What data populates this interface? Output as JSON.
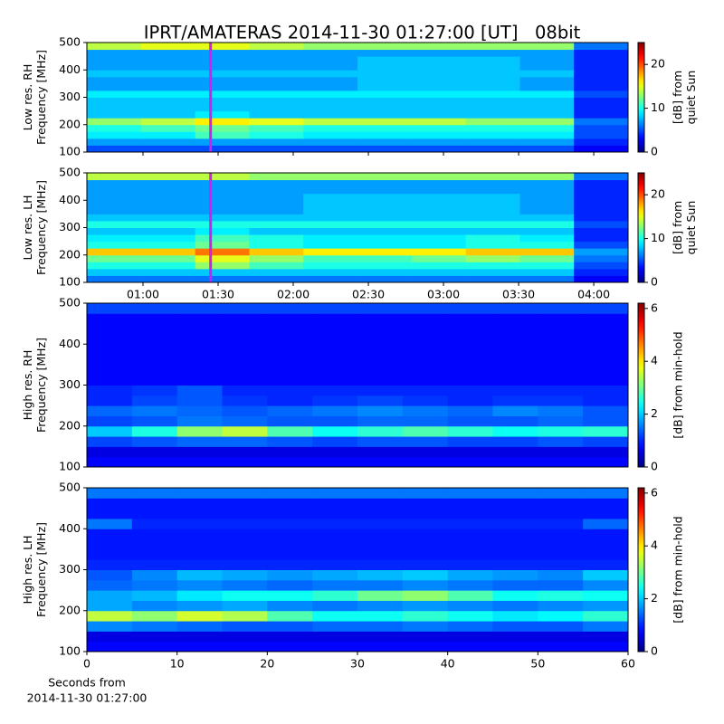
{
  "chart_data": [
    {
      "type": "heatmap",
      "title": "IPRT/AMATERAS 2014-11-30 01:27:00 [UT]   08bit",
      "ylabel": [
        "Low res. RH",
        "Frequency [MHz]"
      ],
      "xlim": [
        37.6,
        253.7
      ],
      "ylim": [
        100,
        500
      ],
      "yticks": [
        100,
        200,
        300,
        400,
        500
      ],
      "colormap": "jet",
      "markers": [
        {
          "x": 87,
          "color": "#d020f0"
        }
      ],
      "colorbar": {
        "label": [
          "[dB] from",
          "quiet Sun"
        ],
        "lim": [
          0,
          25
        ],
        "ticks": [
          0,
          10,
          20
        ]
      },
      "z": [
        [
          5,
          5,
          5,
          5,
          5,
          5,
          5,
          5,
          5,
          3
        ],
        [
          7,
          7,
          7,
          7,
          7,
          7,
          7,
          7,
          7,
          4
        ],
        [
          9,
          9,
          11,
          10,
          9,
          9,
          9,
          9,
          9,
          5
        ],
        [
          10,
          11,
          12,
          11,
          10,
          10,
          10,
          10,
          10,
          5
        ],
        [
          13,
          14,
          16,
          15,
          14,
          14,
          14,
          13,
          13,
          6
        ],
        [
          8,
          8,
          9,
          8,
          8,
          8,
          8,
          8,
          8,
          4
        ],
        [
          8,
          8,
          8,
          8,
          8,
          8,
          8,
          8,
          8,
          4
        ],
        [
          8,
          8,
          8,
          8,
          8,
          8,
          8,
          8,
          8,
          4
        ],
        [
          9,
          9,
          9,
          9,
          9,
          9,
          9,
          9,
          9,
          5
        ],
        [
          7,
          7,
          7,
          7,
          7,
          8,
          8,
          8,
          7,
          4
        ],
        [
          7,
          7,
          7,
          7,
          7,
          8,
          8,
          8,
          7,
          4
        ],
        [
          8,
          8,
          8,
          8,
          8,
          8,
          8,
          8,
          8,
          4
        ],
        [
          7,
          7,
          7,
          7,
          7,
          8,
          8,
          8,
          7,
          4
        ],
        [
          7,
          7,
          7,
          7,
          7,
          8,
          8,
          8,
          7,
          4
        ],
        [
          7,
          7,
          7,
          7,
          7,
          7,
          7,
          7,
          7,
          4
        ],
        [
          14,
          15,
          15,
          14,
          13,
          13,
          13,
          13,
          13,
          6
        ]
      ]
    },
    {
      "type": "heatmap",
      "ylabel": [
        "Low res. LH",
        "Frequency [MHz]"
      ],
      "xlim": [
        37.6,
        253.7
      ],
      "ylim": [
        100,
        500
      ],
      "yticks": [
        100,
        200,
        300,
        400,
        500
      ],
      "colormap": "jet",
      "xticks": [
        {
          "value": 60,
          "label": "01:00"
        },
        {
          "value": 90,
          "label": "01:30"
        },
        {
          "value": 120,
          "label": "02:00"
        },
        {
          "value": 150,
          "label": "02:30"
        },
        {
          "value": 180,
          "label": "03:00"
        },
        {
          "value": 210,
          "label": "03:30"
        },
        {
          "value": 240,
          "label": "04:00"
        }
      ],
      "markers": [
        {
          "x": 87,
          "color": "#d020f0"
        }
      ],
      "colorbar": {
        "label": [
          "[dB] from",
          "quiet Sun"
        ],
        "lim": [
          0,
          25
        ],
        "ticks": [
          0,
          10,
          20
        ]
      },
      "z": [
        [
          6,
          6,
          6,
          6,
          6,
          6,
          6,
          6,
          6,
          3
        ],
        [
          8,
          8,
          8,
          8,
          8,
          8,
          8,
          8,
          8,
          4
        ],
        [
          10,
          10,
          13,
          11,
          10,
          10,
          10,
          10,
          10,
          5
        ],
        [
          12,
          12,
          15,
          13,
          11,
          11,
          12,
          13,
          12,
          6
        ],
        [
          17,
          17,
          19,
          17,
          16,
          16,
          16,
          17,
          17,
          7
        ],
        [
          10,
          10,
          12,
          10,
          9,
          9,
          9,
          10,
          10,
          5
        ],
        [
          9,
          9,
          11,
          10,
          9,
          9,
          9,
          10,
          9,
          4
        ],
        [
          8,
          8,
          9,
          8,
          8,
          8,
          8,
          8,
          8,
          4
        ],
        [
          10,
          10,
          10,
          10,
          10,
          10,
          10,
          10,
          10,
          5
        ],
        [
          8,
          8,
          8,
          8,
          8,
          8,
          8,
          8,
          8,
          4
        ],
        [
          7,
          7,
          7,
          7,
          8,
          8,
          8,
          8,
          7,
          4
        ],
        [
          7,
          7,
          7,
          7,
          8,
          8,
          8,
          8,
          7,
          4
        ],
        [
          7,
          7,
          7,
          7,
          8,
          8,
          8,
          8,
          7,
          4
        ],
        [
          7,
          7,
          7,
          7,
          7,
          7,
          7,
          7,
          7,
          4
        ],
        [
          7,
          7,
          7,
          7,
          7,
          7,
          7,
          7,
          7,
          4
        ],
        [
          14,
          14,
          14,
          13,
          13,
          13,
          13,
          13,
          13,
          6
        ]
      ]
    },
    {
      "type": "heatmap",
      "ylabel": [
        "High res. RH",
        "Frequency [MHz]"
      ],
      "xlim": [
        0,
        60
      ],
      "ylim": [
        100,
        500
      ],
      "yticks": [
        100,
        200,
        300,
        400,
        500
      ],
      "colormap": "jet",
      "colorbar": {
        "label": [
          "[dB] from min-hold"
        ],
        "lim": [
          0,
          6.2
        ],
        "ticks": [
          0,
          2,
          4,
          6
        ]
      },
      "z": [
        [
          0.8,
          0.8,
          0.8,
          0.8,
          0.8,
          0.8,
          0.8,
          0.8,
          0.8,
          0.8,
          0.8,
          0.8
        ],
        [
          0.6,
          0.6,
          0.6,
          0.6,
          0.6,
          0.6,
          0.6,
          0.6,
          0.6,
          0.6,
          0.6,
          0.6
        ],
        [
          1.2,
          1.3,
          1.4,
          1.4,
          1.3,
          1.2,
          1.3,
          1.3,
          1.2,
          1.2,
          1.3,
          1.2
        ],
        [
          2,
          2.5,
          3.2,
          3.5,
          2.8,
          2.4,
          2.6,
          2.8,
          2.6,
          2.4,
          2.5,
          2.6
        ],
        [
          1.2,
          1.3,
          1.5,
          1.4,
          1.3,
          1.3,
          1.4,
          1.4,
          1.3,
          1.3,
          1.4,
          1.3
        ],
        [
          1.4,
          1.5,
          1.4,
          1.3,
          1.4,
          1.5,
          1.6,
          1.5,
          1.4,
          1.6,
          1.5,
          1.3
        ],
        [
          1,
          1.2,
          1.3,
          1.1,
          1,
          1.1,
          1.2,
          1.1,
          1,
          1.1,
          1.1,
          1
        ],
        [
          1,
          1.1,
          1.3,
          1,
          1,
          1,
          1,
          1,
          1,
          1,
          1,
          1
        ],
        [
          0.8,
          0.8,
          0.8,
          0.8,
          0.8,
          0.8,
          0.8,
          0.8,
          0.8,
          0.8,
          0.8,
          0.8
        ],
        [
          0.8,
          0.8,
          0.8,
          0.8,
          0.8,
          0.8,
          0.8,
          0.8,
          0.8,
          0.8,
          0.8,
          0.8
        ],
        [
          0.8,
          0.8,
          0.8,
          0.8,
          0.8,
          0.8,
          0.8,
          0.8,
          0.8,
          0.8,
          0.8,
          0.8
        ],
        [
          0.8,
          0.8,
          0.8,
          0.8,
          0.8,
          0.8,
          0.8,
          0.8,
          0.8,
          0.8,
          0.8,
          0.8
        ],
        [
          0.8,
          0.8,
          0.8,
          0.8,
          0.8,
          0.8,
          0.8,
          0.8,
          0.8,
          0.8,
          0.8,
          0.8
        ],
        [
          0.8,
          0.8,
          0.8,
          0.8,
          0.8,
          0.8,
          0.8,
          0.8,
          0.8,
          0.8,
          0.8,
          0.8
        ],
        [
          0.8,
          0.8,
          0.8,
          0.8,
          0.8,
          0.8,
          0.8,
          0.8,
          0.8,
          0.8,
          0.8,
          0.8
        ],
        [
          1.2,
          1.2,
          1.2,
          1.2,
          1.2,
          1.2,
          1.2,
          1.2,
          1.2,
          1.2,
          1.2,
          1.2
        ]
      ]
    },
    {
      "type": "heatmap",
      "ylabel": [
        "High res. LH",
        "Frequency [MHz]"
      ],
      "xlim": [
        0,
        60
      ],
      "ylim": [
        100,
        500
      ],
      "yticks": [
        100,
        200,
        300,
        400,
        500
      ],
      "colormap": "jet",
      "xticks": [
        0,
        10,
        20,
        30,
        40,
        50,
        60
      ],
      "xlabel": [
        "Seconds from",
        "2014-11-30 01:27:00"
      ],
      "colorbar": {
        "label": [
          "[dB] from min-hold"
        ],
        "lim": [
          0,
          6.2
        ],
        "ticks": [
          0,
          2,
          4,
          6
        ]
      },
      "z": [
        [
          0.8,
          0.8,
          0.8,
          0.8,
          0.8,
          0.8,
          0.8,
          0.8,
          0.8,
          0.8,
          0.8,
          0.8
        ],
        [
          0.6,
          0.6,
          0.6,
          0.6,
          0.6,
          0.6,
          0.6,
          0.6,
          0.6,
          0.6,
          0.6,
          0.6
        ],
        [
          1.6,
          1.5,
          1.4,
          1.3,
          1.3,
          1.4,
          1.4,
          1.5,
          1.4,
          1.3,
          1.3,
          1.5
        ],
        [
          3.5,
          3.2,
          3.6,
          3.4,
          2.8,
          2.4,
          2.4,
          2.6,
          2.4,
          2.2,
          2.3,
          2.6
        ],
        [
          1.8,
          1.6,
          1.7,
          1.8,
          1.6,
          1.5,
          1.6,
          1.7,
          1.6,
          1.5,
          1.6,
          1.7
        ],
        [
          1.8,
          1.9,
          2.2,
          2.4,
          2.4,
          2.6,
          3,
          3.2,
          2.8,
          2.4,
          2.5,
          2.4
        ],
        [
          1.4,
          1.5,
          1.6,
          1.5,
          1.4,
          1.5,
          1.5,
          1.6,
          1.5,
          1.4,
          1.4,
          1.6
        ],
        [
          1.3,
          1.6,
          1.9,
          1.8,
          1.7,
          1.8,
          1.9,
          2,
          1.8,
          1.7,
          1.6,
          2
        ],
        [
          1,
          1,
          1,
          1,
          1,
          1,
          1,
          1,
          1,
          1,
          1,
          1
        ],
        [
          0.9,
          0.9,
          0.9,
          0.9,
          0.9,
          0.9,
          0.9,
          0.9,
          0.9,
          0.9,
          0.9,
          0.9
        ],
        [
          0.9,
          0.9,
          0.9,
          0.9,
          0.9,
          0.9,
          0.9,
          0.9,
          0.9,
          0.9,
          0.9,
          0.9
        ],
        [
          0.9,
          0.9,
          0.9,
          0.9,
          0.9,
          0.9,
          0.9,
          0.9,
          0.9,
          0.9,
          0.9,
          0.9
        ],
        [
          1.5,
          1,
          1,
          1,
          1,
          1,
          1,
          1,
          1,
          1,
          1,
          1.4
        ],
        [
          0.9,
          0.9,
          0.9,
          0.9,
          0.9,
          0.9,
          0.9,
          0.9,
          0.9,
          0.9,
          0.9,
          0.9
        ],
        [
          0.9,
          0.9,
          0.9,
          0.9,
          0.9,
          0.9,
          0.9,
          0.9,
          0.9,
          0.9,
          0.9,
          0.9
        ],
        [
          1.5,
          1.5,
          1.5,
          1.5,
          1.5,
          1.5,
          1.5,
          1.5,
          1.5,
          1.5,
          1.5,
          1.5
        ]
      ]
    }
  ]
}
